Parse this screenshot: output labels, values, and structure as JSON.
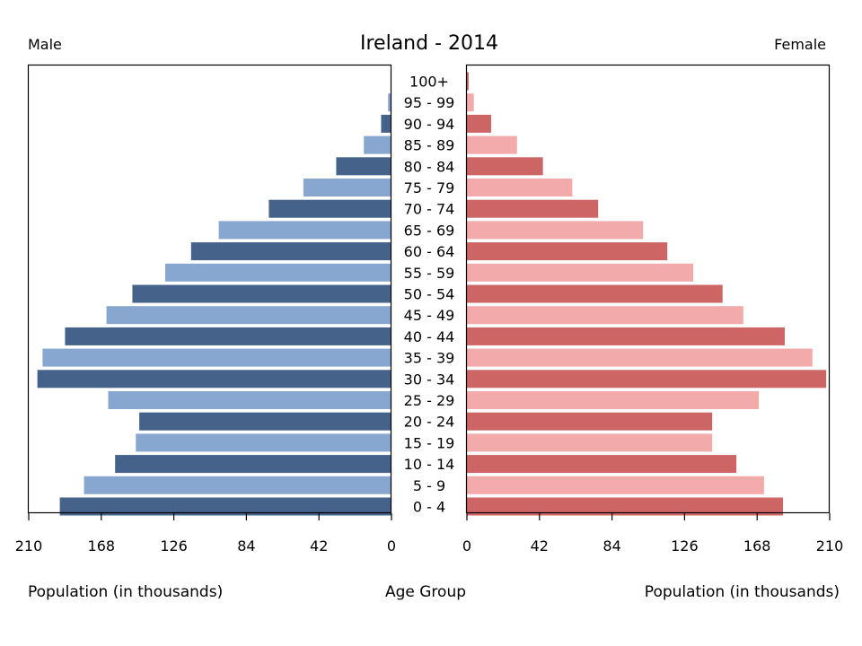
{
  "chart_data": {
    "type": "bar",
    "title": "Ireland - 2014",
    "left_label": "Male",
    "right_label": "Female",
    "left_xlabel": "Population (in thousands)",
    "right_xlabel": "Population (in thousands)",
    "center_label": "Age Group",
    "xlim": [
      0,
      210
    ],
    "ticks": [
      0,
      42,
      84,
      126,
      168,
      210
    ],
    "categories": [
      "0 - 4",
      "5 - 9",
      "10 - 14",
      "15 - 19",
      "20 - 24",
      "25 - 29",
      "30 - 34",
      "35 - 39",
      "40 - 44",
      "45 - 49",
      "50 - 54",
      "55 - 59",
      "60 - 64",
      "65 - 69",
      "70 - 74",
      "75 - 79",
      "80 - 84",
      "85 - 89",
      "90 - 94",
      "95 - 99",
      "100+"
    ],
    "series": [
      {
        "name": "Male",
        "values": [
          192,
          178,
          160,
          148,
          146,
          164,
          205,
          202,
          189,
          165,
          150,
          131,
          116,
          100,
          71,
          51,
          32,
          16,
          6,
          2,
          0.5
        ]
      },
      {
        "name": "Female",
        "values": [
          183,
          172,
          156,
          142,
          142,
          169,
          208,
          200,
          184,
          160,
          148,
          131,
          116,
          102,
          76,
          61,
          44,
          29,
          14,
          4,
          1
        ]
      }
    ],
    "colors": {
      "male_dark": "#45628a",
      "male_light": "#87a7d1",
      "female_dark": "#cd6565",
      "female_light": "#f2aaaa"
    }
  }
}
